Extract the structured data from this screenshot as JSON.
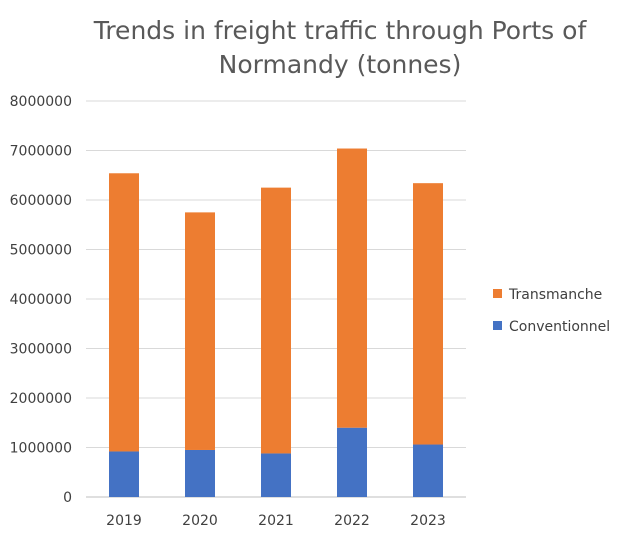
{
  "chart_data": {
    "type": "bar",
    "stacked": true,
    "title": "Trends in freight traffic through Ports of Normandy (tonnes)",
    "categories": [
      "2019",
      "2020",
      "2021",
      "2022",
      "2023"
    ],
    "series": [
      {
        "name": "Conventionnel",
        "color": "#4472C4",
        "values": [
          920000,
          950000,
          880000,
          1400000,
          1060000
        ]
      },
      {
        "name": "Transmanche",
        "color": "#ED7D31",
        "values": [
          5620000,
          4800000,
          5370000,
          5640000,
          5280000
        ]
      }
    ],
    "ylim": [
      0,
      8000000
    ],
    "yticks": [
      "0",
      "1000000",
      "2000000",
      "3000000",
      "4000000",
      "5000000",
      "6000000",
      "7000000",
      "8000000"
    ],
    "grid": true,
    "legend_position": "right"
  }
}
